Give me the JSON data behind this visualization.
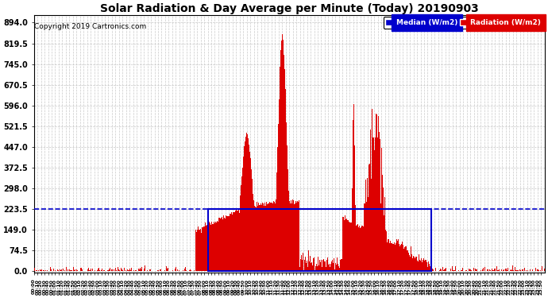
{
  "title": "Solar Radiation & Day Average per Minute (Today) 20190903",
  "copyright": "Copyright 2019 Cartronics.com",
  "legend_blue_label": "Median (W/m2)",
  "legend_red_label": "Radiation (W/m2)",
  "yticks": [
    0.0,
    74.5,
    149.0,
    223.5,
    298.0,
    372.5,
    447.0,
    521.5,
    596.0,
    670.5,
    745.0,
    819.5,
    894.0
  ],
  "ymax": 894.0,
  "bg_color": "#ffffff",
  "plot_bg_color": "#ffffff",
  "grid_color": "#aaaaaa",
  "bar_color": "#dd0000",
  "median_color": "#0000cc",
  "box_color": "#0000cc",
  "sunrise_minute": 490,
  "sunset_minute": 1120,
  "median_value": 223.5,
  "total_minutes": 1440,
  "xtick_step": 10,
  "peak_minute": 700,
  "secondary_peak_minute": 975,
  "figwidth": 6.9,
  "figheight": 3.75,
  "dpi": 100
}
